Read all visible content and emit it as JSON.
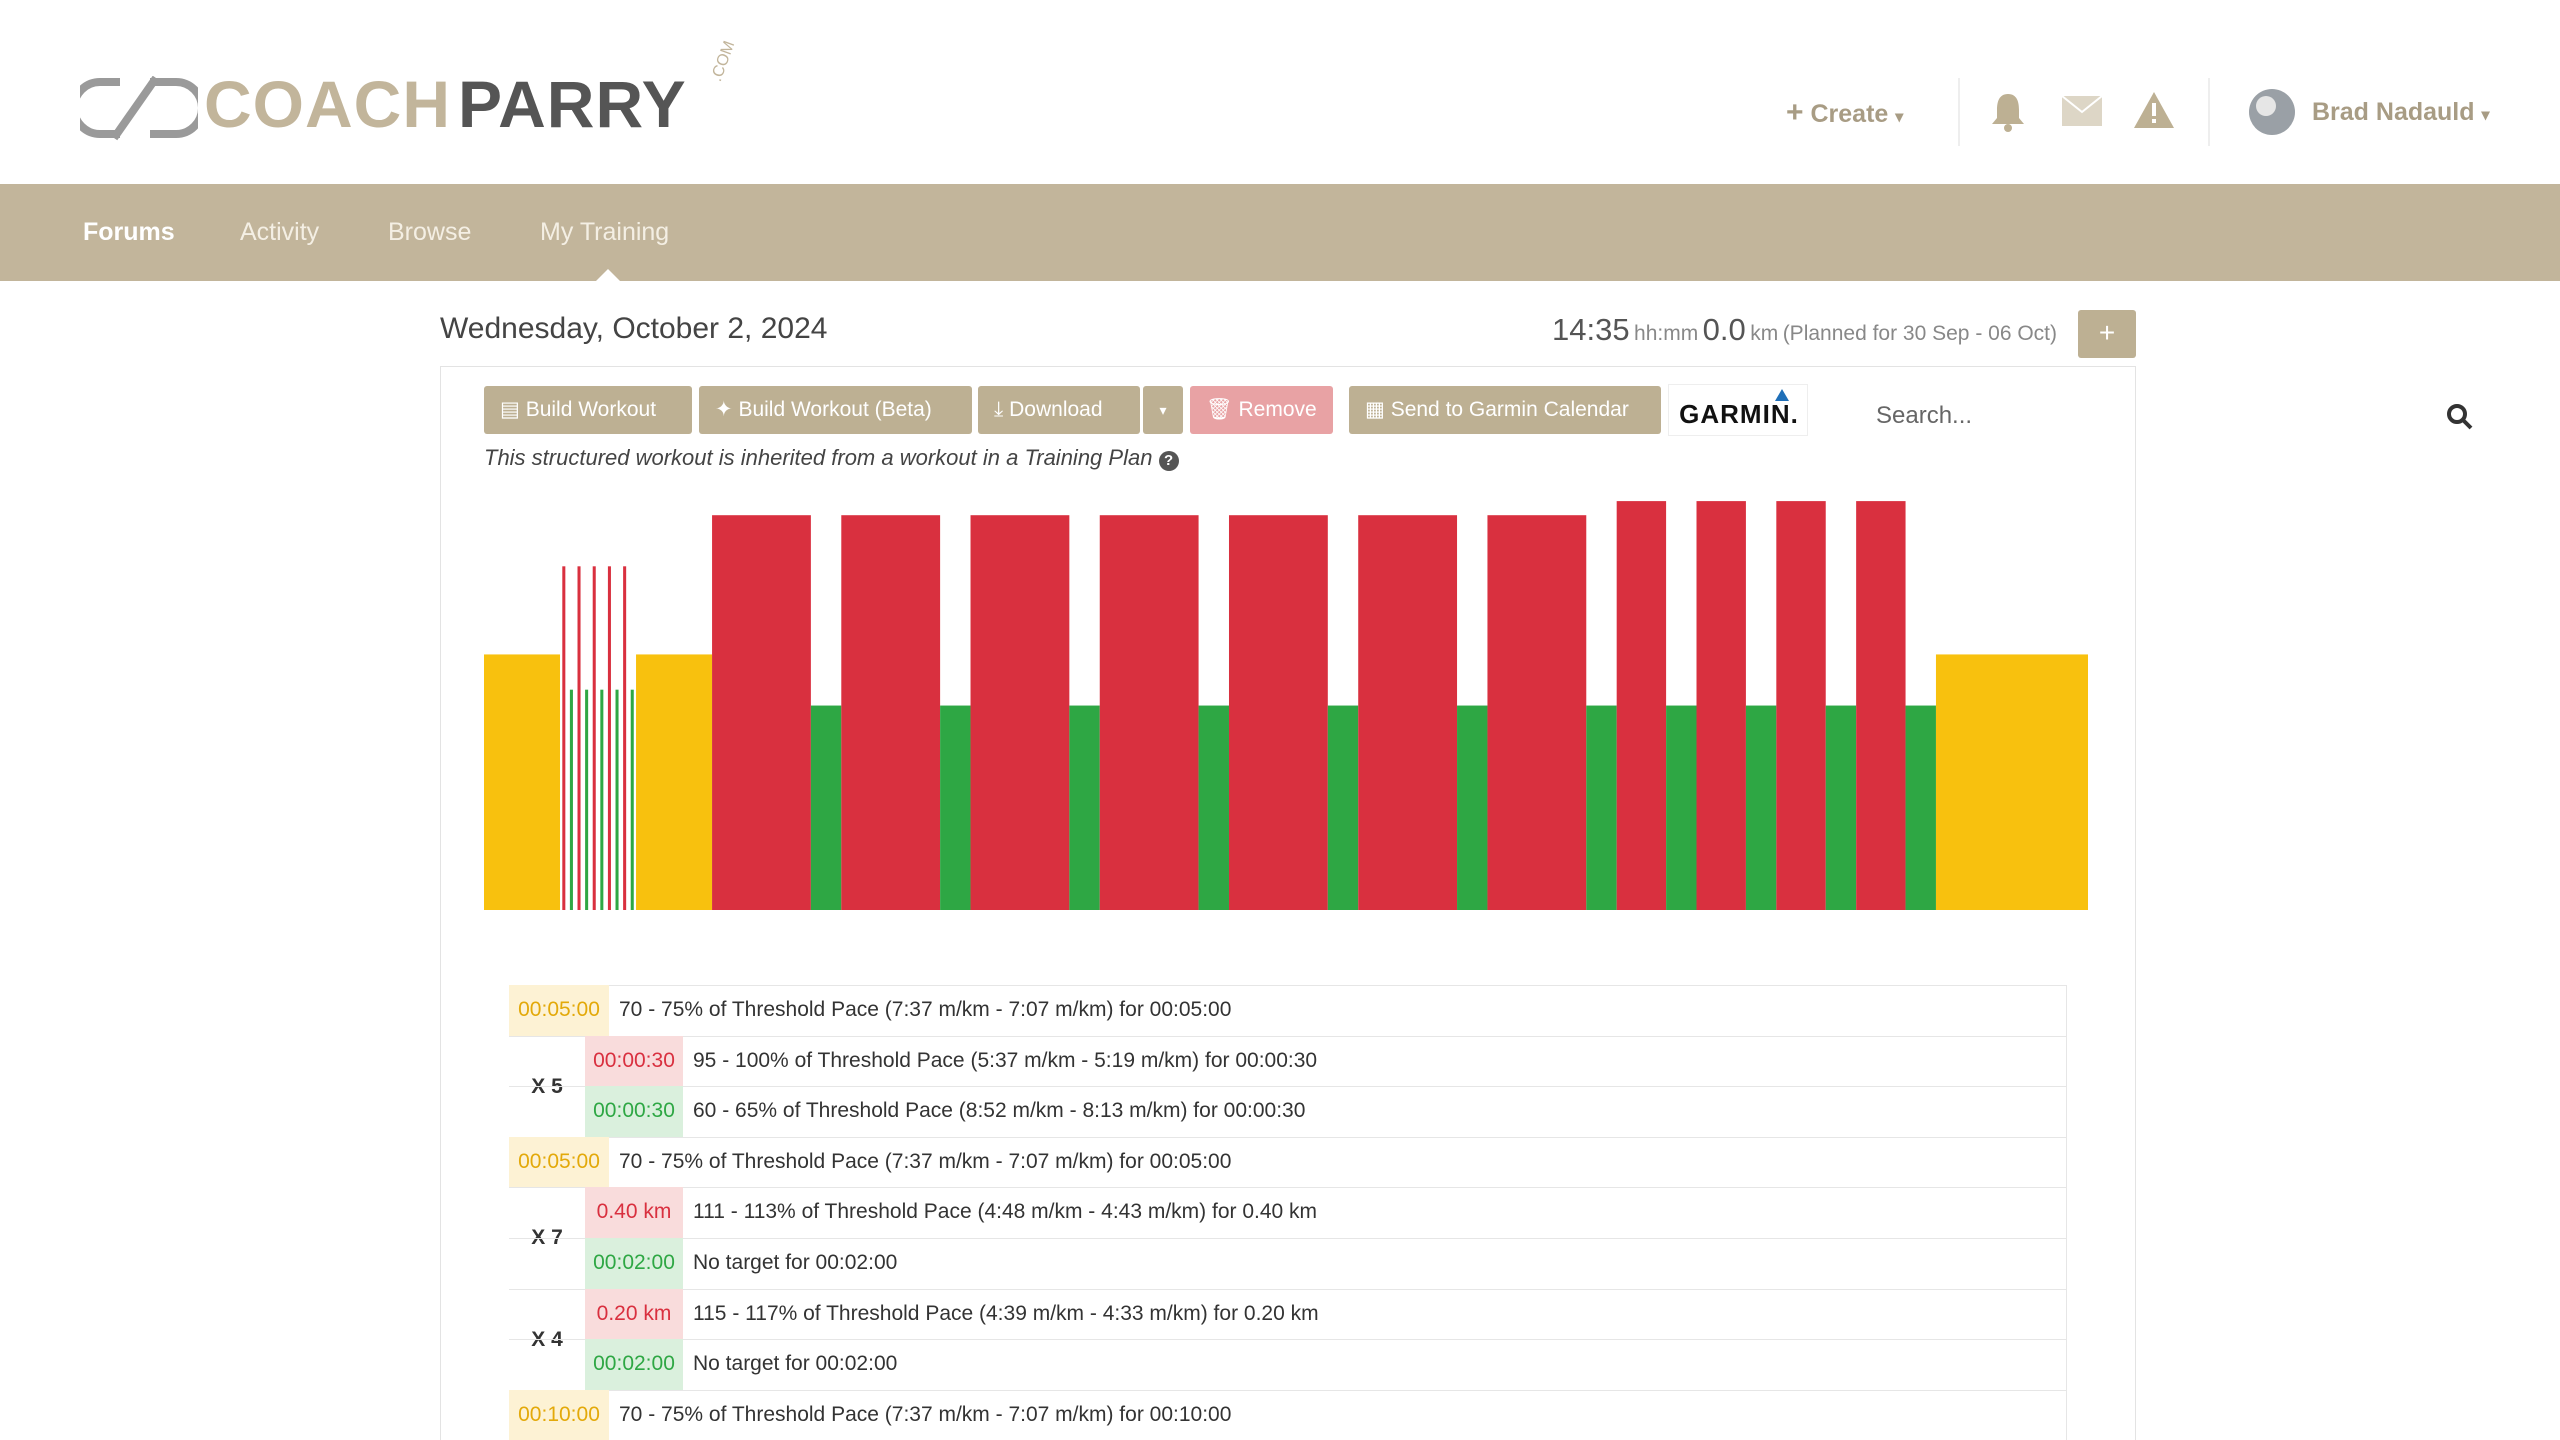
{
  "header": {
    "logo": {
      "coach": "COACH",
      "parry": "PARRY",
      "com": ".COM"
    },
    "create": "Create",
    "user": "Brad Nadauld"
  },
  "nav": {
    "items": [
      "Forums",
      "Activity",
      "Browse",
      "My Training"
    ],
    "search_placeholder": "Search..."
  },
  "day": {
    "date": "Wednesday, October 2, 2024",
    "time": "14:35",
    "time_unit": "hh:mm",
    "distance": "0.0",
    "distance_unit": "km",
    "planned": "(Planned for 30 Sep - 06 Oct)",
    "add": "+"
  },
  "toolbar": {
    "build_workout": "Build Workout",
    "build_workout_beta": "Build Workout (Beta)",
    "download": "Download",
    "remove": "Remove",
    "send_garmin": "Send to Garmin Calendar",
    "garmin_logo": "GARMIN."
  },
  "note": "This structured workout is inherited from a workout in a Training Plan",
  "chart_data": {
    "type": "bar",
    "values": [
      72.5,
      97.5,
      62.5,
      97.5,
      62.5,
      97.5,
      62.5,
      97.5,
      62.5,
      97.5,
      62.5,
      72.5,
      112,
      58,
      112,
      58,
      112,
      58,
      112,
      58,
      112,
      58,
      112,
      58,
      112,
      58,
      116,
      58,
      116,
      58,
      116,
      58,
      116,
      58,
      72.5
    ],
    "durations": [
      5,
      0.5,
      0.5,
      0.5,
      0.5,
      0.5,
      0.5,
      0.5,
      0.5,
      0.5,
      0.5,
      5,
      6.5,
      2,
      6.5,
      2,
      6.5,
      2,
      6.5,
      2,
      6.5,
      2,
      6.5,
      2,
      6.5,
      2,
      3.25,
      2,
      3.25,
      2,
      3.25,
      2,
      3.25,
      2,
      10
    ],
    "colors": [
      "#f8c10e",
      "#d9303f",
      "#2ea744",
      "#d9303f",
      "#2ea744",
      "#d9303f",
      "#2ea744",
      "#d9303f",
      "#2ea744",
      "#d9303f",
      "#2ea744",
      "#f8c10e",
      "#d9303f",
      "#2ea744",
      "#d9303f",
      "#2ea744",
      "#d9303f",
      "#2ea744",
      "#d9303f",
      "#2ea744",
      "#d9303f",
      "#2ea744",
      "#d9303f",
      "#2ea744",
      "#d9303f",
      "#2ea744",
      "#d9303f",
      "#2ea744",
      "#d9303f",
      "#2ea744",
      "#d9303f",
      "#2ea744",
      "#d9303f",
      "#2ea744",
      "#f8c10e"
    ],
    "ylim": [
      0,
      120
    ]
  },
  "workout": {
    "rows": [
      {
        "zone": "yellow",
        "duration": "00:05:00",
        "description": "70 - 75% of Threshold Pace (7:37 m/km - 7:07 m/km) for 00:05:00"
      },
      {
        "repeat": "X 5",
        "steps": [
          {
            "zone": "red",
            "duration": "00:00:30",
            "description": "95 - 100% of Threshold Pace (5:37 m/km - 5:19 m/km) for 00:00:30"
          },
          {
            "zone": "green",
            "duration": "00:00:30",
            "description": "60 - 65% of Threshold Pace (8:52 m/km - 8:13 m/km) for 00:00:30"
          }
        ]
      },
      {
        "zone": "yellow",
        "duration": "00:05:00",
        "description": "70 - 75% of Threshold Pace (7:37 m/km - 7:07 m/km) for 00:05:00"
      },
      {
        "repeat": "X 7",
        "steps": [
          {
            "zone": "red",
            "duration": "0.40 km",
            "description": "111 - 113% of Threshold Pace (4:48 m/km - 4:43 m/km) for 0.40 km"
          },
          {
            "zone": "green",
            "duration": "00:02:00",
            "description": "No target for 00:02:00"
          }
        ]
      },
      {
        "repeat": "X 4",
        "steps": [
          {
            "zone": "red",
            "duration": "0.20 km",
            "description": "115 - 117% of Threshold Pace (4:39 m/km - 4:33 m/km) for 0.20 km"
          },
          {
            "zone": "green",
            "duration": "00:02:00",
            "description": "No target for 00:02:00"
          }
        ]
      },
      {
        "zone": "yellow",
        "duration": "00:10:00",
        "description": "70 - 75% of Threshold Pace (7:37 m/km - 7:07 m/km) for 00:10:00"
      }
    ]
  }
}
